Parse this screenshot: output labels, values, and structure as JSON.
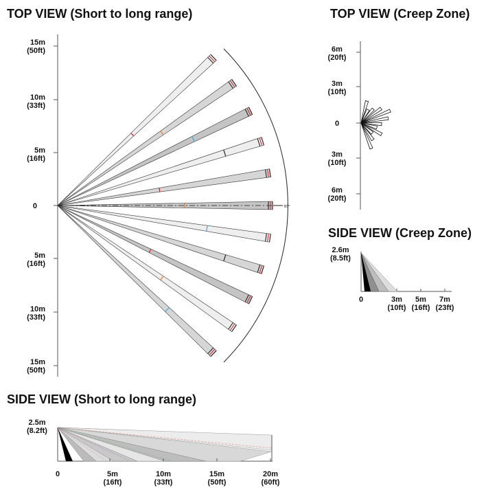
{
  "titles": {
    "top_long": "TOP VIEW (Short to long range)",
    "top_creep": "TOP VIEW (Creep Zone)",
    "side_creep": "SIDE VIEW (Creep Zone)",
    "side_long": "SIDE VIEW (Short to long range)"
  },
  "angle_label": "87°",
  "top_long_axis": [
    {
      "m": "15m",
      "ft": "(50ft)"
    },
    {
      "m": "10m",
      "ft": "(33ft)"
    },
    {
      "m": "5m",
      "ft": "(16ft)"
    },
    {
      "m": "0",
      "ft": ""
    },
    {
      "m": "5m",
      "ft": "(16ft)"
    },
    {
      "m": "10m",
      "ft": "(33ft)"
    },
    {
      "m": "15m",
      "ft": "(50ft)"
    }
  ],
  "top_creep_axis": [
    {
      "m": "6m",
      "ft": "(20ft)"
    },
    {
      "m": "3m",
      "ft": "(10ft)"
    },
    {
      "m": "0",
      "ft": ""
    },
    {
      "m": "3m",
      "ft": "(10ft)"
    },
    {
      "m": "6m",
      "ft": "(20ft)"
    }
  ],
  "side_creep": {
    "height": {
      "m": "2.6m",
      "ft": "(8.5ft)"
    },
    "x_ticks": [
      {
        "m": "0",
        "ft": ""
      },
      {
        "m": "3m",
        "ft": "(10ft)"
      },
      {
        "m": "5m",
        "ft": "(16ft)"
      },
      {
        "m": "7m",
        "ft": "(23ft)"
      }
    ]
  },
  "side_long": {
    "height": {
      "m": "2.5m",
      "ft": "(8.2ft)"
    },
    "x_ticks": [
      {
        "m": "0",
        "ft": ""
      },
      {
        "m": "5m",
        "ft": "(16ft)"
      },
      {
        "m": "10m",
        "ft": "(33ft)"
      },
      {
        "m": "15m",
        "ft": "(50ft)"
      },
      {
        "m": "20m",
        "ft": "(60ft)"
      }
    ]
  },
  "colors": {
    "zone_light": "#eeeeee",
    "zone_mid": "#d6d6d6",
    "zone_dark": "#c4c4c4",
    "marker_red": "#d0202a",
    "marker_orange": "#f07820",
    "marker_blue": "#3fa7d6"
  }
}
